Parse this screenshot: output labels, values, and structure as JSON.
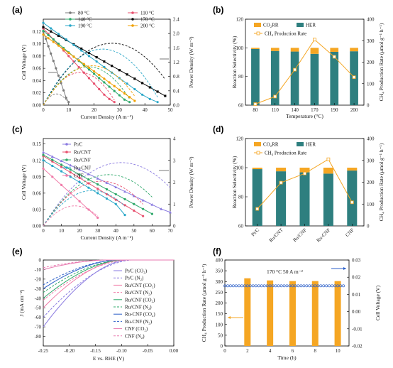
{
  "panels": {
    "a": "(a)",
    "b": "(b)",
    "c": "(c)",
    "d": "(d)",
    "e": "(e)",
    "f": "(f)"
  },
  "colors": {
    "orange": "#f5a623",
    "teal": "#2e7f7f",
    "a_series": [
      "#7a7a7a",
      "#e8506e",
      "#2ea86a",
      "#0a0a0a",
      "#2aa7c8",
      "#f0a000"
    ],
    "c_series": [
      "#8a7ae0",
      "#e8506e",
      "#2ea86a",
      "#2aa7c8",
      "#f07aa8"
    ],
    "e_series": [
      "#8a7ae0",
      "#8a7ae0",
      "#f07aa8",
      "#f07aa8",
      "#2ea86a",
      "#2ea86a",
      "#2a5ec8",
      "#2a5ec8",
      "#e87ab0",
      "#e87ab0"
    ]
  },
  "chart_data": [
    {
      "id": "a",
      "type": "line",
      "xlabel": "Current Density (A m⁻²)",
      "ylabel": "Cell Voltage (V)",
      "y2label": "Power Density (W m⁻²)",
      "xlim": [
        0,
        50
      ],
      "ylim": [
        0,
        0.14
      ],
      "y2lim": [
        0,
        2.4
      ],
      "xticks": [
        0,
        10,
        20,
        30,
        40,
        50
      ],
      "yticks": [
        0.0,
        0.02,
        0.04,
        0.06,
        0.08,
        0.1,
        0.12
      ],
      "y2ticks": [
        0.0,
        0.4,
        0.8,
        1.2,
        1.6,
        2.0,
        2.4
      ],
      "legend_position": "top",
      "series": [
        {
          "name": "80 °C",
          "v0": 0.12,
          "x": [
            0,
            1,
            2,
            3,
            4,
            5,
            6,
            7,
            8,
            9,
            10
          ],
          "v": [
            0.12,
            0.108,
            0.096,
            0.084,
            0.072,
            0.06,
            0.048,
            0.036,
            0.024,
            0.012,
            0.005
          ]
        },
        {
          "name": "110 °C",
          "v0": 0.125,
          "x": [
            0,
            2,
            4,
            6,
            8,
            10,
            12,
            14,
            16,
            18,
            20,
            22,
            24,
            26,
            28
          ],
          "v": [
            0.125,
            0.116,
            0.107,
            0.098,
            0.089,
            0.08,
            0.071,
            0.062,
            0.053,
            0.044,
            0.035,
            0.026,
            0.017,
            0.01,
            0.005
          ]
        },
        {
          "name": "140 °C",
          "v0": 0.121,
          "x": [
            0,
            2,
            4,
            6,
            8,
            10,
            12,
            14,
            16,
            18,
            20,
            22,
            24,
            26,
            28,
            30,
            32,
            34
          ],
          "v": [
            0.121,
            0.114,
            0.107,
            0.1,
            0.093,
            0.086,
            0.079,
            0.072,
            0.065,
            0.058,
            0.051,
            0.044,
            0.037,
            0.03,
            0.023,
            0.016,
            0.009,
            0.005
          ]
        },
        {
          "name": "170 °C",
          "v0": 0.127,
          "x": [
            0,
            3,
            6,
            9,
            12,
            15,
            18,
            21,
            24,
            27,
            30,
            33,
            36,
            39,
            42,
            45,
            48
          ],
          "v": [
            0.127,
            0.12,
            0.113,
            0.106,
            0.099,
            0.092,
            0.085,
            0.078,
            0.071,
            0.064,
            0.057,
            0.05,
            0.043,
            0.036,
            0.029,
            0.022,
            0.015
          ]
        },
        {
          "name": "190 °C",
          "v0": 0.134,
          "x": [
            0,
            3,
            6,
            9,
            12,
            15,
            18,
            21,
            24,
            27,
            30,
            33,
            36,
            39,
            42,
            45
          ],
          "v": [
            0.134,
            0.125,
            0.116,
            0.107,
            0.098,
            0.089,
            0.08,
            0.071,
            0.062,
            0.053,
            0.044,
            0.035,
            0.026,
            0.017,
            0.01,
            0.005
          ]
        },
        {
          "name": "200 °C",
          "v0": 0.115,
          "x": [
            0,
            2,
            4,
            6,
            8,
            10,
            12,
            14,
            16,
            18,
            20,
            22,
            24,
            26,
            28,
            30,
            32,
            34,
            36
          ],
          "v": [
            0.115,
            0.109,
            0.103,
            0.097,
            0.091,
            0.085,
            0.079,
            0.073,
            0.067,
            0.061,
            0.055,
            0.049,
            0.043,
            0.037,
            0.031,
            0.025,
            0.019,
            0.013,
            0.007
          ]
        }
      ]
    },
    {
      "id": "b",
      "type": "bar",
      "xlabel": "Temperature (°C)",
      "ylabel": "Reaction Selectivity (%)",
      "y2label": "CH₄ Production Rate (μmol g⁻¹ h⁻¹)",
      "categories": [
        "80",
        "110",
        "140",
        "170",
        "190",
        "200"
      ],
      "ylim": [
        60,
        120
      ],
      "yticks": [
        60,
        80,
        100,
        120
      ],
      "y2lim": [
        0,
        400
      ],
      "y2ticks": [
        0,
        100,
        200,
        300,
        400
      ],
      "legend": [
        "CO₂RR",
        "HER",
        "CH₄ Production Rate"
      ],
      "legend_position": "top",
      "series": [
        {
          "name": "HER",
          "values": [
            99.2,
            97.8,
            97.4,
            95.8,
            97.2,
            97.6
          ]
        },
        {
          "name": "CO₂RR",
          "values": [
            0.8,
            2.2,
            2.6,
            4.2,
            2.8,
            2.4
          ]
        },
        {
          "name": "CH₄ Production Rate",
          "values": [
            5,
            40,
            165,
            305,
            225,
            130
          ]
        }
      ]
    },
    {
      "id": "c",
      "type": "line",
      "xlabel": "Current Density (A m⁻²)",
      "ylabel": "Cell Voltage (V)",
      "y2label": "Power Density (W m⁻²)",
      "xlim": [
        0,
        70
      ],
      "ylim": [
        0,
        0.16
      ],
      "y2lim": [
        0,
        4
      ],
      "xticks": [
        0,
        10,
        20,
        30,
        40,
        50,
        60,
        70
      ],
      "yticks": [
        0.0,
        0.03,
        0.06,
        0.09,
        0.12,
        0.15
      ],
      "y2ticks": [
        0,
        1,
        2,
        3,
        4
      ],
      "legend_position": "top-left",
      "series": [
        {
          "name": "Pt/C",
          "x": [
            0,
            5,
            10,
            15,
            20,
            25,
            30,
            35,
            40,
            45,
            50,
            55,
            60,
            65,
            70
          ],
          "v": [
            0.135,
            0.127,
            0.119,
            0.111,
            0.103,
            0.095,
            0.087,
            0.079,
            0.071,
            0.063,
            0.055,
            0.047,
            0.039,
            0.031,
            0.025
          ]
        },
        {
          "name": "Ru/CNT",
          "x": [
            0,
            5,
            10,
            15,
            20,
            25,
            30,
            35,
            40,
            45,
            50,
            55
          ],
          "v": [
            0.128,
            0.118,
            0.108,
            0.098,
            0.088,
            0.078,
            0.068,
            0.058,
            0.048,
            0.038,
            0.028,
            0.018
          ]
        },
        {
          "name": "Ru/CNF",
          "x": [
            0,
            5,
            10,
            15,
            20,
            25,
            30,
            35,
            40,
            45,
            50,
            55,
            60
          ],
          "v": [
            0.13,
            0.121,
            0.112,
            0.103,
            0.094,
            0.085,
            0.076,
            0.067,
            0.058,
            0.049,
            0.04,
            0.031,
            0.022
          ]
        },
        {
          "name": "Ru-CNF",
          "x": [
            0,
            5,
            10,
            15,
            20,
            25,
            30,
            35,
            40,
            45
          ],
          "v": [
            0.12,
            0.11,
            0.1,
            0.09,
            0.08,
            0.07,
            0.06,
            0.05,
            0.04,
            0.02
          ]
        },
        {
          "name": "CNF",
          "x": [
            0,
            5,
            10,
            15,
            20,
            25,
            30
          ],
          "v": [
            0.105,
            0.09,
            0.075,
            0.06,
            0.045,
            0.03,
            0.015
          ]
        }
      ]
    },
    {
      "id": "d",
      "type": "bar",
      "ylabel": "Reaction Selectivity (%)",
      "y2label": "CH₄ Production Rate (μmol g⁻¹ h⁻¹)",
      "categories": [
        "Pt/C",
        "Ru/CNT",
        "Ru/CNF",
        "Ru-CNF",
        "CNF"
      ],
      "ylim": [
        60,
        120
      ],
      "yticks": [
        60,
        80,
        100,
        120
      ],
      "y2lim": [
        0,
        400
      ],
      "y2ticks": [
        0,
        100,
        200,
        300,
        400
      ],
      "legend": [
        "CO₂RR",
        "HER",
        "CH₄ Production Rate"
      ],
      "legend_position": "top",
      "series": [
        {
          "name": "HER",
          "values": [
            99.0,
            97.5,
            96.8,
            95.9,
            98.0
          ]
        },
        {
          "name": "CO₂RR",
          "values": [
            1.0,
            2.5,
            3.2,
            4.1,
            2.0
          ]
        },
        {
          "name": "CH₄ Production Rate",
          "values": [
            78,
            198,
            240,
            305,
            108
          ]
        }
      ]
    },
    {
      "id": "e",
      "type": "line",
      "xlabel": "E vs. RHE (V)",
      "ylabel": "J (mA cm⁻²)",
      "xlim": [
        -0.25,
        0.0
      ],
      "ylim": [
        -90,
        0
      ],
      "xticks": [
        -0.25,
        -0.2,
        -0.15,
        -0.1,
        -0.05,
        0.0
      ],
      "yticks": [
        0,
        -10,
        -20,
        -30,
        -40,
        -50,
        -60,
        -70,
        -80
      ],
      "legend_position": "right",
      "series": [
        {
          "name": "Pt/C (CO₂)",
          "onset": -0.09,
          "jend": -70,
          "dash": false
        },
        {
          "name": "Pt/C (N₂)",
          "onset": -0.08,
          "jend": -60,
          "dash": true
        },
        {
          "name": "Ru/CNT (CO₂)",
          "onset": -0.1,
          "jend": -50,
          "dash": false
        },
        {
          "name": "Ru/CNT (N₂)",
          "onset": -0.09,
          "jend": -42,
          "dash": true
        },
        {
          "name": "Ru/CNF (CO₂)",
          "onset": -0.1,
          "jend": -40,
          "dash": false
        },
        {
          "name": "Ru/CNF (N₂)",
          "onset": -0.1,
          "jend": -34,
          "dash": true
        },
        {
          "name": "Ru-CNF (CO₂)",
          "onset": -0.11,
          "jend": -30,
          "dash": false
        },
        {
          "name": "Ru-CNF (N₂)",
          "onset": -0.11,
          "jend": -26,
          "dash": true
        },
        {
          "name": "CNF (CO₂)",
          "onset": -0.13,
          "jend": -10,
          "dash": false
        },
        {
          "name": "CNF (N₂)",
          "onset": -0.13,
          "jend": -8,
          "dash": true
        }
      ]
    },
    {
      "id": "f",
      "type": "bar",
      "xlabel": "Time (h)",
      "ylabel": "CH₄ Production Rate (μmol g⁻¹ h⁻¹)",
      "y2label": "Cell Voltage (V)",
      "annotation": "170 °C   50 A m⁻²",
      "xlim": [
        0,
        11
      ],
      "xticks": [
        0,
        2,
        4,
        6,
        8,
        10
      ],
      "ylim": [
        0,
        400
      ],
      "yticks": [
        0,
        50,
        100,
        150,
        200,
        250,
        300,
        350,
        400
      ],
      "y2lim": [
        -0.02,
        0.03
      ],
      "y2ticks": [
        -0.02,
        -0.01,
        0.0,
        0.01,
        0.02,
        0.03
      ],
      "bars": {
        "x": [
          2,
          4,
          6,
          8,
          10
        ],
        "values": [
          315,
          305,
          302,
          302,
          302
        ]
      },
      "voltage": {
        "x_start": 0,
        "x_end": 10.5,
        "value": 0.015
      }
    }
  ]
}
